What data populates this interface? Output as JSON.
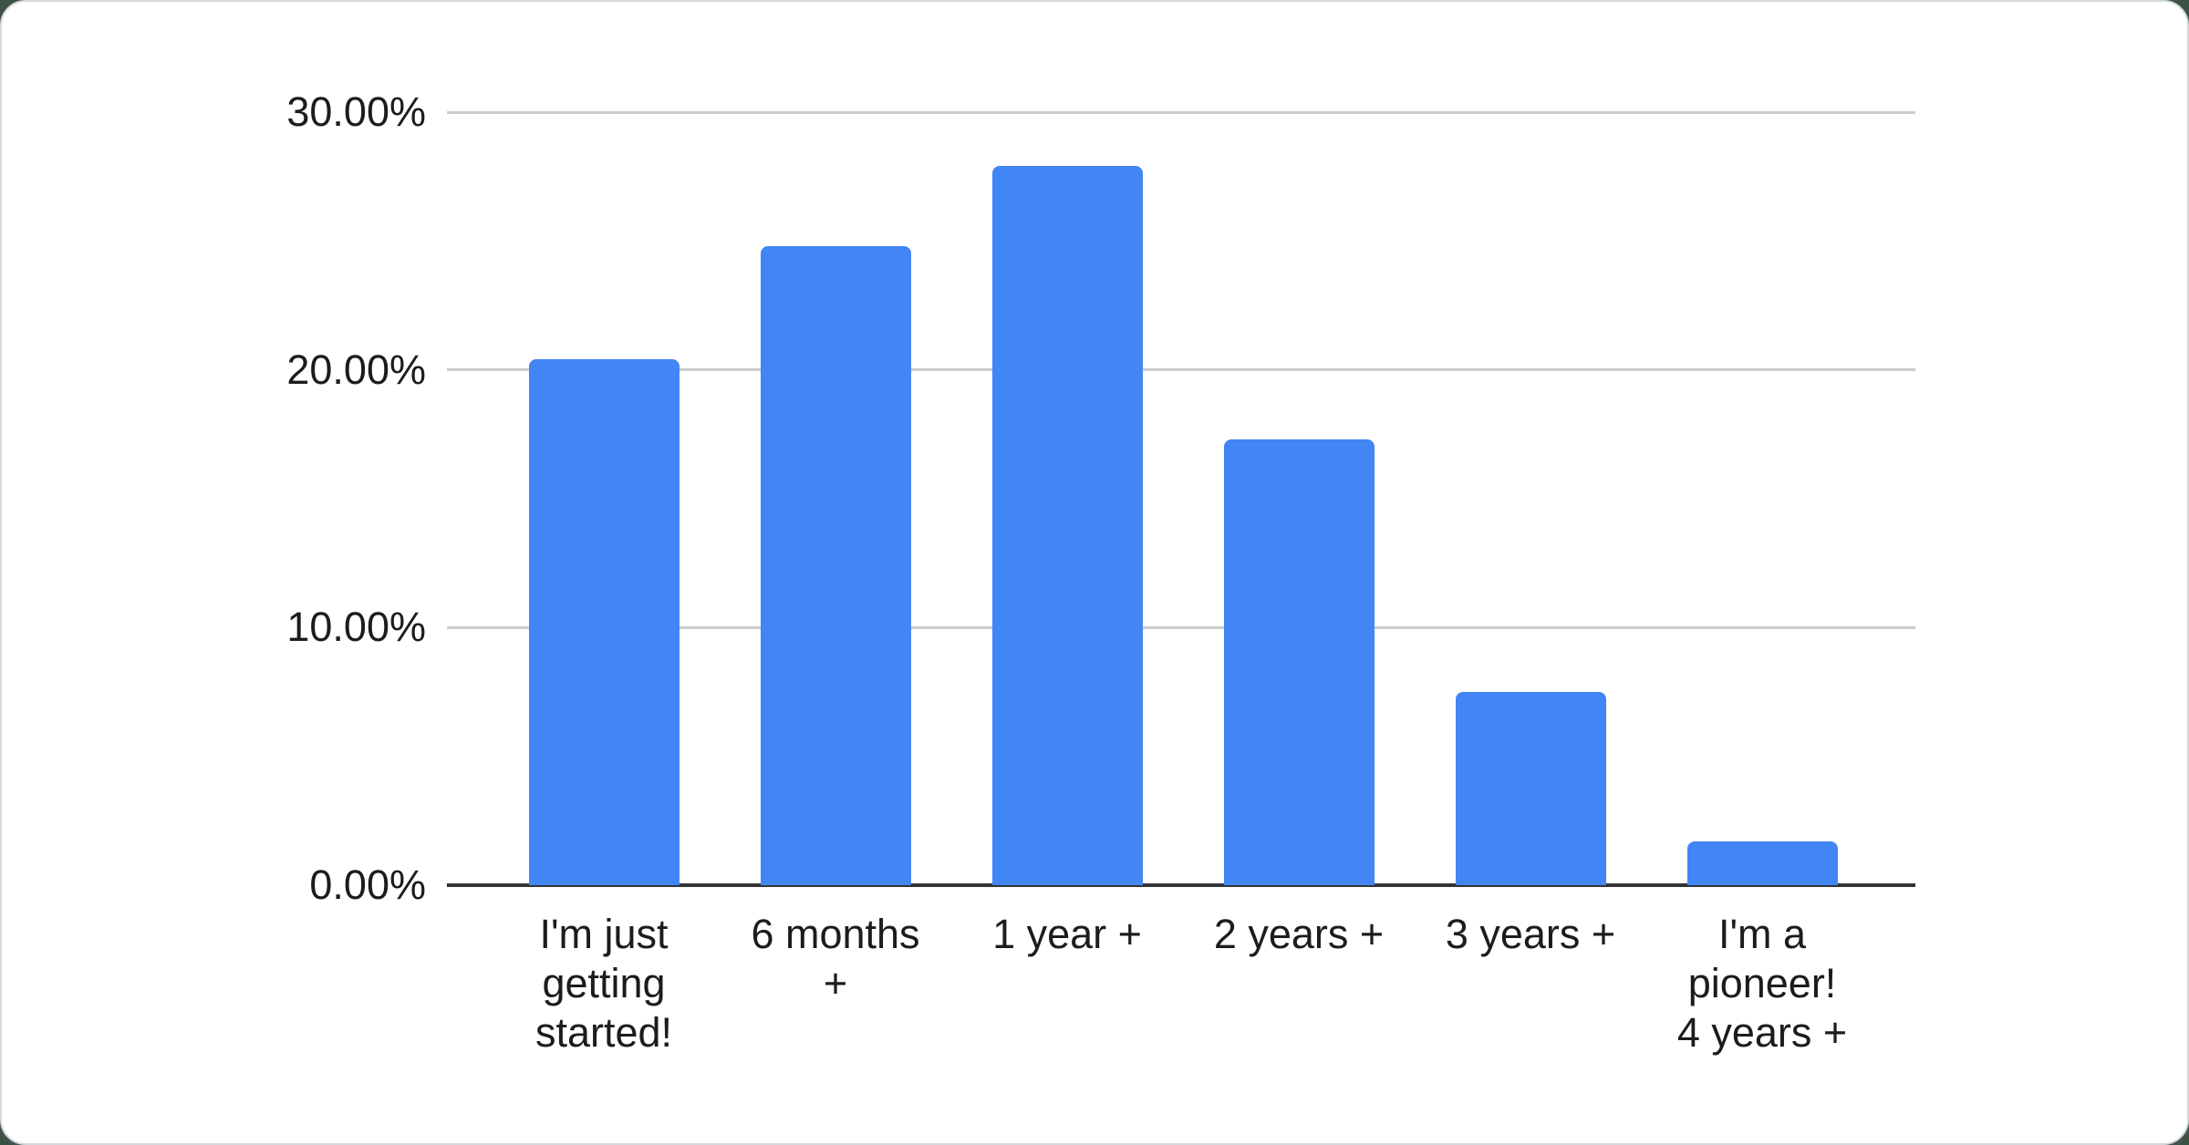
{
  "chart_data": {
    "type": "bar",
    "title": "",
    "xlabel": "",
    "ylabel": "",
    "categories": [
      "I'm just getting started!",
      "6 months +",
      "1 year +",
      "2 years +",
      "3 years +",
      "I'm a pioneer! 4 years +"
    ],
    "category_lines": [
      [
        "I'm just",
        "getting",
        "started!"
      ],
      [
        "6 months",
        "+"
      ],
      [
        "1 year +"
      ],
      [
        "2 years +"
      ],
      [
        "3 years +"
      ],
      [
        "I'm a",
        "pioneer!",
        "4 years +"
      ]
    ],
    "values": [
      20.4,
      24.8,
      27.9,
      17.3,
      7.5,
      1.7
    ],
    "unit": "%",
    "ylim": [
      0,
      30
    ],
    "y_tick_values": [
      0,
      10,
      20,
      30
    ],
    "y_tick_labels": [
      "0.00%",
      "10.00%",
      "20.00%",
      "30.00%"
    ],
    "grid": "horizontal-on",
    "legend": "none",
    "series_name": "",
    "colors": {
      "bar": "#4285F4",
      "gridline": "#cccccc",
      "axis_line": "#333333",
      "axis_text": "#1c1c1c",
      "card_background": "#ffffff",
      "card_border": "#d5d8dc",
      "page_background": "#3b5244"
    }
  }
}
